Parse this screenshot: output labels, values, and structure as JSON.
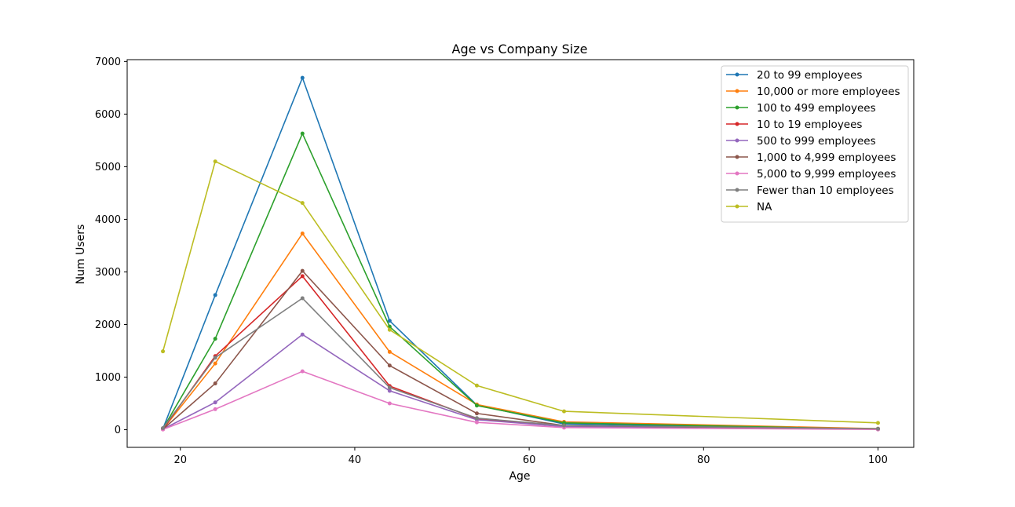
{
  "chart_data": {
    "type": "line",
    "title": "Age vs Company Size",
    "xlabel": "Age",
    "ylabel": "Num Users",
    "xlim": [
      13.9,
      104.1
    ],
    "ylim": [
      -335,
      7035
    ],
    "xticks": [
      20,
      40,
      60,
      80,
      100
    ],
    "yticks": [
      0,
      1000,
      2000,
      3000,
      4000,
      5000,
      6000,
      7000
    ],
    "legend_position": "upper right",
    "x": [
      18,
      24,
      34,
      44,
      54,
      64,
      100
    ],
    "series": [
      {
        "name": "20 to 99 employees",
        "color": "#1f77b4",
        "values": [
          20,
          2560,
          6690,
          2070,
          470,
          110,
          10
        ]
      },
      {
        "name": "10,000 or more employees",
        "color": "#ff7f0e",
        "values": [
          10,
          1260,
          3730,
          1480,
          480,
          150,
          20
        ]
      },
      {
        "name": "100 to 499 employees",
        "color": "#2ca02c",
        "values": [
          20,
          1730,
          5630,
          1960,
          460,
          130,
          10
        ]
      },
      {
        "name": "10 to 19 employees",
        "color": "#d62728",
        "values": [
          10,
          1400,
          2920,
          830,
          210,
          60,
          10
        ]
      },
      {
        "name": "500 to 999 employees",
        "color": "#9467bd",
        "values": [
          10,
          520,
          1810,
          740,
          190,
          60,
          10
        ]
      },
      {
        "name": "1,000 to 4,999 employees",
        "color": "#8c564b",
        "values": [
          10,
          880,
          3020,
          1220,
          310,
          80,
          10
        ]
      },
      {
        "name": "5,000 to 9,999 employees",
        "color": "#e377c2",
        "values": [
          5,
          390,
          1110,
          500,
          140,
          40,
          5
        ]
      },
      {
        "name": "Fewer than 10 employees",
        "color": "#7f7f7f",
        "values": [
          30,
          1370,
          2500,
          800,
          220,
          80,
          20
        ]
      },
      {
        "name": "NA",
        "color": "#bcbd22",
        "values": [
          1490,
          5100,
          4310,
          1900,
          840,
          350,
          130
        ]
      }
    ]
  }
}
